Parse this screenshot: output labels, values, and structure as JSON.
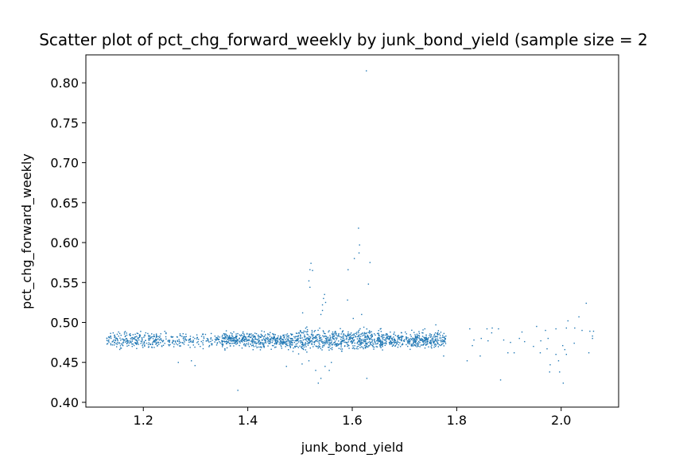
{
  "chart_data": {
    "type": "scatter",
    "title": "Scatter plot of pct_chg_forward_weekly by junk_bond_yield (sample size = 2",
    "xlabel": "junk_bond_yield",
    "ylabel": "pct_chg_forward_weekly",
    "xlim": [
      1.09,
      2.11
    ],
    "ylim": [
      0.394,
      0.835
    ],
    "x_ticks": [
      1.2,
      1.4,
      1.6,
      1.8,
      2.0
    ],
    "x_tick_labels": [
      "1.2",
      "1.4",
      "1.6",
      "1.8",
      "2.0"
    ],
    "y_ticks": [
      0.4,
      0.45,
      0.5,
      0.55,
      0.6,
      0.65,
      0.7,
      0.75,
      0.8
    ],
    "y_tick_labels": [
      "0.40",
      "0.45",
      "0.50",
      "0.55",
      "0.60",
      "0.65",
      "0.70",
      "0.75",
      "0.80"
    ],
    "grid": false,
    "marker_color": "#1f77b4",
    "outlier_points": [
      [
        1.627,
        0.815
      ],
      [
        1.612,
        0.618
      ],
      [
        1.614,
        0.597
      ],
      [
        1.613,
        0.587
      ],
      [
        1.634,
        0.575
      ],
      [
        1.521,
        0.574
      ],
      [
        1.524,
        0.565
      ],
      [
        1.519,
        0.566
      ],
      [
        1.592,
        0.566
      ],
      [
        1.604,
        0.58
      ],
      [
        1.517,
        0.552
      ],
      [
        1.631,
        0.548
      ],
      [
        1.519,
        0.544
      ],
      [
        1.547,
        0.535
      ],
      [
        1.545,
        0.53
      ],
      [
        1.549,
        0.525
      ],
      [
        1.543,
        0.522
      ],
      [
        1.591,
        0.528
      ],
      [
        1.543,
        0.515
      ],
      [
        1.54,
        0.51
      ],
      [
        1.618,
        0.51
      ],
      [
        1.505,
        0.512
      ],
      [
        1.602,
        0.505
      ],
      [
        2.048,
        0.524
      ],
      [
        1.381,
        0.415
      ],
      [
        1.535,
        0.424
      ],
      [
        1.54,
        0.43
      ],
      [
        1.628,
        0.43
      ],
      [
        1.53,
        0.44
      ],
      [
        1.548,
        0.445
      ],
      [
        1.556,
        0.44
      ],
      [
        1.56,
        0.45
      ],
      [
        1.474,
        0.445
      ],
      [
        1.504,
        0.448
      ],
      [
        1.517,
        0.452
      ],
      [
        1.267,
        0.45
      ],
      [
        1.292,
        0.452
      ],
      [
        1.299,
        0.446
      ],
      [
        1.884,
        0.428
      ],
      [
        2.004,
        0.424
      ],
      [
        1.978,
        0.438
      ],
      [
        1.997,
        0.438
      ],
      [
        1.979,
        0.447
      ],
      [
        1.995,
        0.452
      ],
      [
        1.82,
        0.452
      ],
      [
        1.845,
        0.458
      ],
      [
        1.898,
        0.462
      ],
      [
        1.91,
        0.462
      ],
      [
        1.868,
        0.493
      ],
      [
        1.867,
        0.487
      ],
      [
        1.953,
        0.495
      ],
      [
        1.88,
        0.492
      ],
      [
        1.825,
        0.492
      ],
      [
        1.76,
        0.497
      ],
      [
        1.739,
        0.492
      ],
      [
        1.775,
        0.458
      ],
      [
        2.007,
        0.466
      ],
      [
        2.003,
        0.471
      ],
      [
        2.01,
        0.493
      ],
      [
        2.026,
        0.493
      ],
      [
        2.034,
        0.507
      ],
      [
        2.04,
        0.49
      ],
      [
        2.055,
        0.489
      ],
      [
        2.06,
        0.483
      ],
      [
        2.062,
        0.489
      ],
      [
        2.06,
        0.48
      ],
      [
        2.013,
        0.502
      ],
      [
        1.99,
        0.492
      ],
      [
        1.97,
        0.49
      ],
      [
        1.975,
        0.48
      ],
      [
        1.961,
        0.477
      ],
      [
        1.925,
        0.488
      ],
      [
        1.93,
        0.476
      ],
      [
        1.947,
        0.47
      ],
      [
        1.92,
        0.48
      ],
      [
        1.903,
        0.475
      ],
      [
        1.89,
        0.478
      ],
      [
        1.86,
        0.477
      ],
      [
        1.847,
        0.48
      ],
      [
        1.83,
        0.471
      ],
      [
        1.833,
        0.478
      ],
      [
        1.858,
        0.492
      ],
      [
        1.99,
        0.46
      ],
      [
        2.01,
        0.46
      ],
      [
        2.053,
        0.462
      ],
      [
        1.973,
        0.467
      ],
      [
        1.96,
        0.462
      ],
      [
        2.025,
        0.474
      ]
    ],
    "dense_band": {
      "x_range": [
        1.13,
        1.78
      ],
      "center": 0.478,
      "spread": 0.008,
      "point_count": 1800
    }
  }
}
